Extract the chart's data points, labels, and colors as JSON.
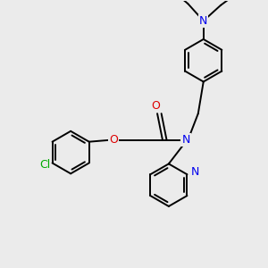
{
  "bg_color": "#ebebeb",
  "bond_color": "#000000",
  "bond_width": 1.4,
  "atom_colors": {
    "N": "#0000ee",
    "O": "#dd0000",
    "Cl": "#00aa00",
    "C": "#000000"
  },
  "font_size": 8.5,
  "figsize": [
    3.0,
    3.0
  ],
  "dpi": 100,
  "xlim": [
    0.0,
    6.5
  ],
  "ylim": [
    0.0,
    6.5
  ]
}
